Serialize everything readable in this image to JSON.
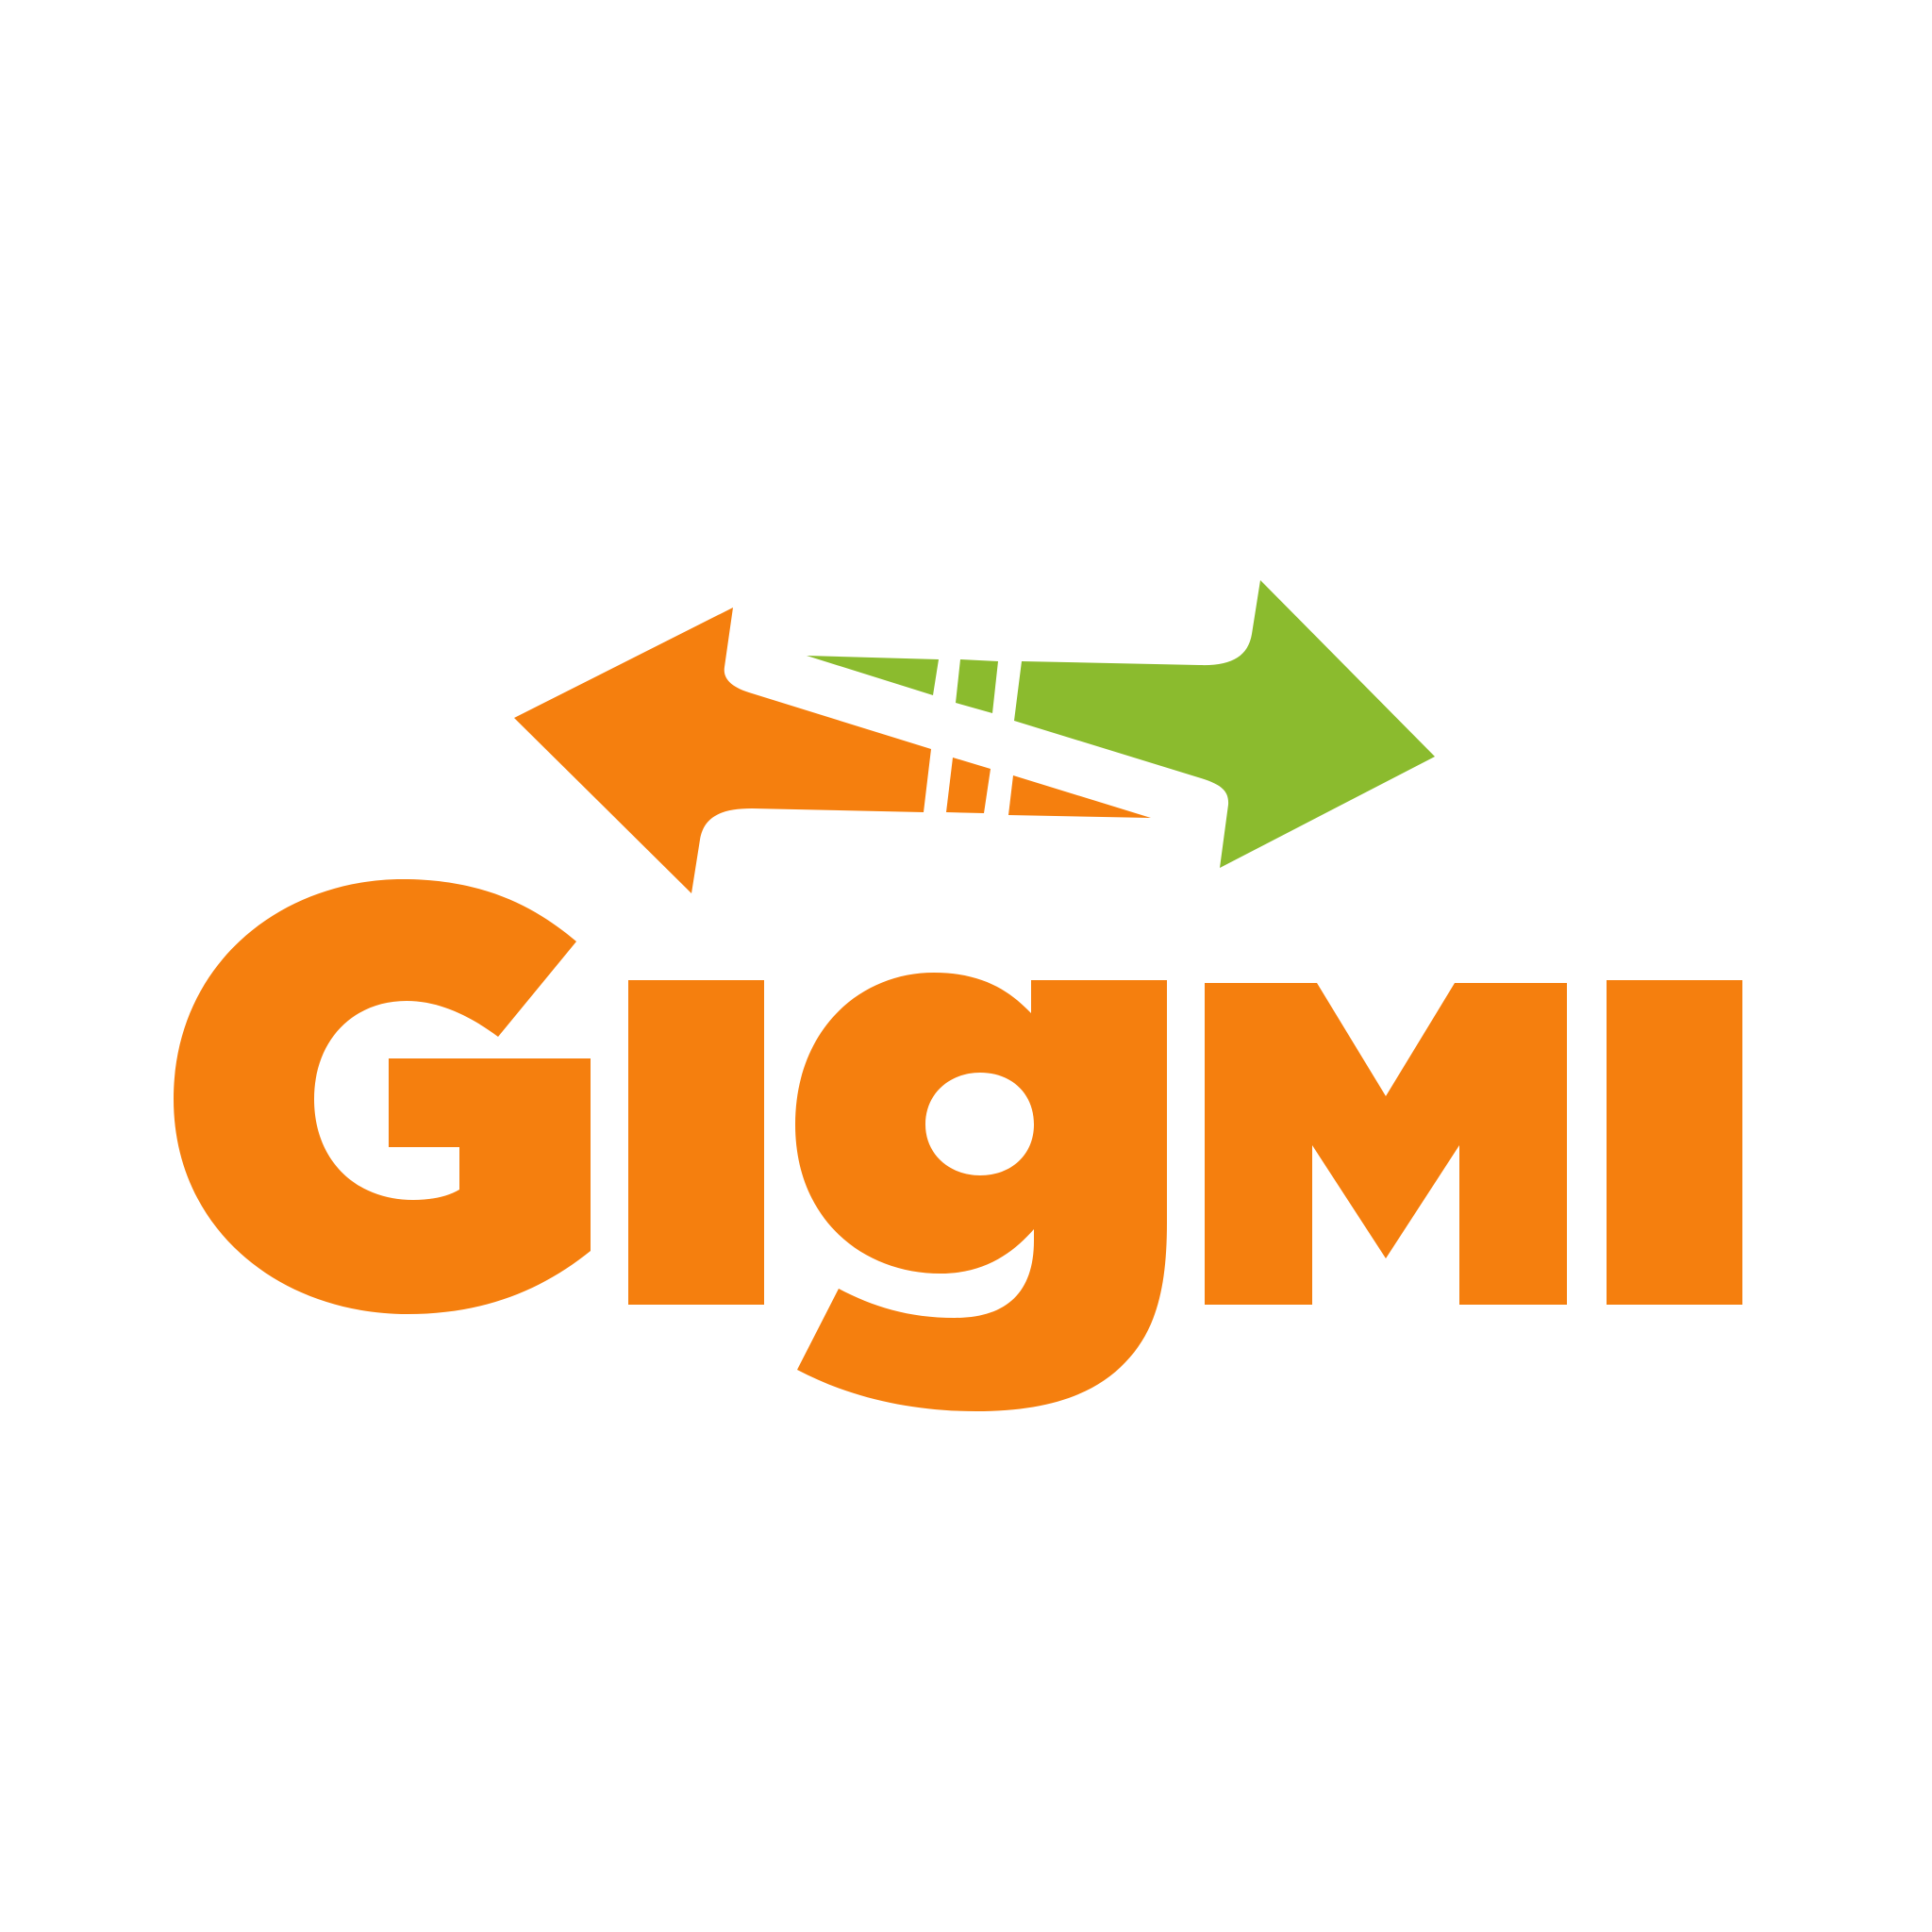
{
  "logo": {
    "wordmark": "Gigmi",
    "symbol": "exchange-arrows-icon",
    "colors": {
      "background": "#ffffff",
      "orange": "#F57F0E",
      "green": "#8BBB2E"
    }
  }
}
